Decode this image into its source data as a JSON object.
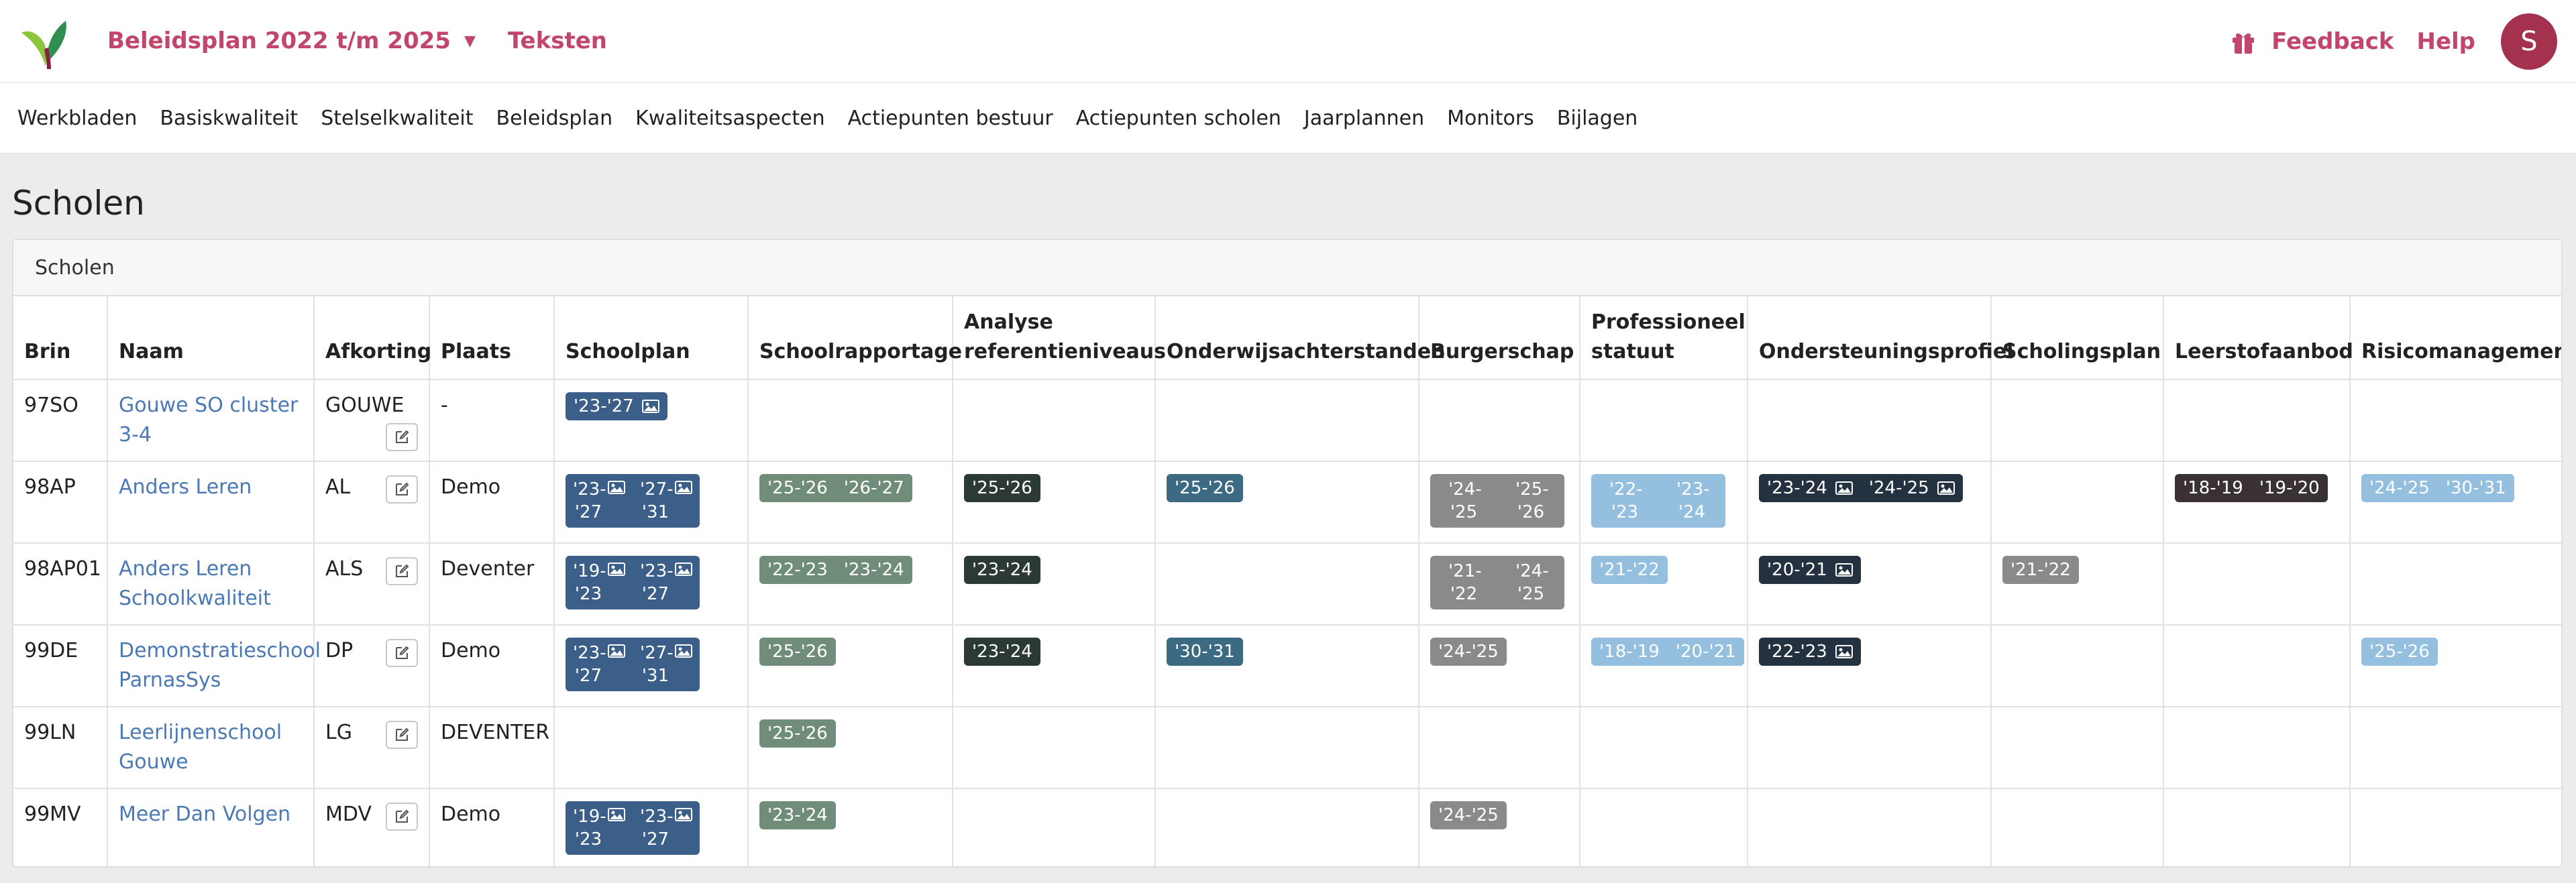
{
  "header": {
    "title": "Beleidsplan 2022 t/m 2025",
    "teksten": "Teksten",
    "feedback": "Feedback",
    "help": "Help",
    "avatar": "S"
  },
  "nav": [
    "Werkbladen",
    "Basiskwaliteit",
    "Stelselkwaliteit",
    "Beleidsplan",
    "Kwaliteitsaspecten",
    "Actiepunten bestuur",
    "Actiepunten scholen",
    "Jaarplannen",
    "Monitors",
    "Bijlagen"
  ],
  "page_title": "Scholen",
  "card_title": "Scholen",
  "columns": [
    "Brin",
    "Naam",
    "Afkorting",
    "Plaats",
    "Schoolplan",
    "Schoolrapportage",
    "Analyse referentieniveaus",
    "Onderwijsachterstanden",
    "Burgerschap",
    "Professioneel statuut",
    "Ondersteuningsprofiel",
    "Scholingsplan",
    "Leerstofaanbod",
    "Risicomanagement"
  ],
  "colors": {
    "schoolplan": "#3b5f88",
    "schoolrapportage": "#6f8d79",
    "analyse": "#2c3a34",
    "onderwijsachterstanden": "#3d6a83",
    "burgerschap": "#8a8a8a",
    "professioneel": "#94bfdf",
    "ondersteuningsprofiel": "#243141",
    "scholingsplan": "#8a8a8a",
    "leerstofaanbod": "#3a3135",
    "risicomanagement": "#94bfdf"
  },
  "rows": [
    {
      "brin": "97SO",
      "naam": "Gouwe SO cluster 3-4",
      "afkorting": "GOUWE",
      "plaats": "-",
      "cells": [
        {
          "cls": "c-blue",
          "segs": [
            {
              "t": "'23-'27",
              "img": true
            }
          ]
        },
        null,
        null,
        null,
        null,
        null,
        null,
        null,
        null,
        null
      ]
    },
    {
      "brin": "98AP",
      "naam": "Anders Leren",
      "afkorting": "AL",
      "plaats": "Demo",
      "cells": [
        {
          "cls": "c-blue",
          "narrow": true,
          "segs": [
            {
              "t": "'23-'27",
              "img": true
            },
            {
              "t": "'27-'31",
              "img": true
            }
          ]
        },
        {
          "cls": "c-green",
          "segs": [
            {
              "t": "'25-'26"
            },
            {
              "t": "'26-'27"
            }
          ]
        },
        {
          "cls": "c-dark",
          "segs": [
            {
              "t": "'25-'26"
            }
          ]
        },
        {
          "cls": "c-teal",
          "segs": [
            {
              "t": "'25-'26"
            }
          ]
        },
        {
          "cls": "c-gray",
          "narrow": true,
          "segs": [
            {
              "t": "'24-'25"
            },
            {
              "t": "'25-'26"
            }
          ]
        },
        {
          "cls": "c-light",
          "narrow": true,
          "segs": [
            {
              "t": "'22-'23"
            },
            {
              "t": "'23-'24"
            }
          ]
        },
        {
          "cls": "c-navy",
          "segs": [
            {
              "t": "'23-'24",
              "img": true
            },
            {
              "t": "'24-'25",
              "img": true
            }
          ]
        },
        null,
        {
          "cls": "c-plum",
          "segs": [
            {
              "t": "'18-'19"
            },
            {
              "t": "'19-'20"
            }
          ]
        },
        {
          "cls": "c-light",
          "segs": [
            {
              "t": "'24-'25"
            },
            {
              "t": "'30-'31"
            }
          ]
        }
      ]
    },
    {
      "brin": "98AP01",
      "naam": "Anders Leren Schoolkwaliteit",
      "afkorting": "ALS",
      "plaats": "Deventer",
      "cells": [
        {
          "cls": "c-blue",
          "narrow": true,
          "segs": [
            {
              "t": "'19-'23",
              "img": true
            },
            {
              "t": "'23-'27",
              "img": true
            }
          ]
        },
        {
          "cls": "c-green",
          "segs": [
            {
              "t": "'22-'23"
            },
            {
              "t": "'23-'24"
            }
          ]
        },
        {
          "cls": "c-dark",
          "segs": [
            {
              "t": "'23-'24"
            }
          ]
        },
        null,
        {
          "cls": "c-gray",
          "narrow": true,
          "segs": [
            {
              "t": "'21-'22"
            },
            {
              "t": "'24-'25"
            }
          ]
        },
        {
          "cls": "c-light",
          "segs": [
            {
              "t": "'21-'22"
            }
          ]
        },
        {
          "cls": "c-navy",
          "segs": [
            {
              "t": "'20-'21",
              "img": true
            }
          ]
        },
        {
          "cls": "c-gray",
          "segs": [
            {
              "t": "'21-'22"
            }
          ]
        },
        null,
        null
      ]
    },
    {
      "brin": "99DE",
      "naam": "Demonstratieschool ParnasSys",
      "afkorting": "DP",
      "plaats": "Demo",
      "cells": [
        {
          "cls": "c-blue",
          "narrow": true,
          "segs": [
            {
              "t": "'23-'27",
              "img": true
            },
            {
              "t": "'27-'31",
              "img": true
            }
          ]
        },
        {
          "cls": "c-green",
          "segs": [
            {
              "t": "'25-'26"
            }
          ]
        },
        {
          "cls": "c-dark",
          "segs": [
            {
              "t": "'23-'24"
            }
          ]
        },
        {
          "cls": "c-teal",
          "segs": [
            {
              "t": "'30-'31"
            }
          ]
        },
        {
          "cls": "c-gray",
          "segs": [
            {
              "t": "'24-'25"
            }
          ]
        },
        {
          "cls": "c-light",
          "segs": [
            {
              "t": "'18-'19"
            },
            {
              "t": "'20-'21"
            }
          ]
        },
        {
          "cls": "c-navy",
          "segs": [
            {
              "t": "'22-'23",
              "img": true
            }
          ]
        },
        null,
        null,
        {
          "cls": "c-light",
          "segs": [
            {
              "t": "'25-'26"
            }
          ]
        }
      ]
    },
    {
      "brin": "99LN",
      "naam": "Leerlijnenschool Gouwe",
      "afkorting": "LG",
      "plaats": "DEVENTER",
      "cells": [
        null,
        {
          "cls": "c-green",
          "segs": [
            {
              "t": "'25-'26"
            }
          ]
        },
        null,
        null,
        null,
        null,
        null,
        null,
        null,
        null
      ]
    },
    {
      "brin": "99MV",
      "naam": "Meer Dan Volgen",
      "afkorting": "MDV",
      "plaats": "Demo",
      "cells": [
        {
          "cls": "c-blue",
          "narrow": true,
          "segs": [
            {
              "t": "'19-'23",
              "img": true
            },
            {
              "t": "'23-'27",
              "img": true
            }
          ]
        },
        {
          "cls": "c-green",
          "segs": [
            {
              "t": "'23-'24"
            }
          ]
        },
        null,
        null,
        {
          "cls": "c-gray",
          "segs": [
            {
              "t": "'24-'25"
            }
          ]
        },
        null,
        null,
        null,
        null,
        null
      ]
    }
  ]
}
